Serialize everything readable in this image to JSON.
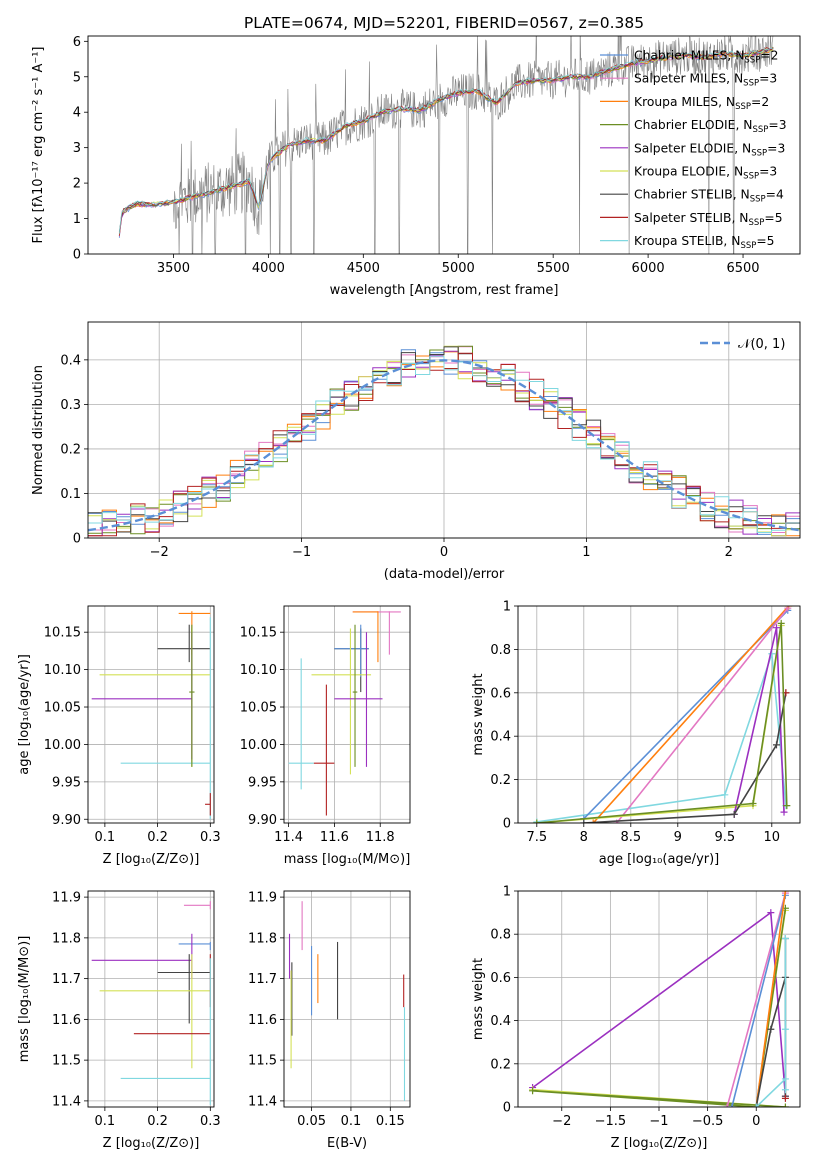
{
  "title": "PLATE=0674, MJD=52201, FIBERID=0567, z=0.385",
  "colors": {
    "chabrier_miles": "#5b8fd6",
    "salpeter_miles": "#e377c2",
    "kroupa_miles": "#ff7f0e",
    "chabrier_elodie": "#6b8e23",
    "salpeter_elodie": "#9b30c0",
    "kroupa_elodie": "#d4e157",
    "chabrier_stelib": "#444444",
    "salpeter_stelib": "#b22222",
    "kroupa_stelib": "#80d8e0",
    "data_grey": "#808080",
    "normal_curve": "#5b8fd6",
    "grid": "#b0b0b0"
  },
  "chart_data": [
    {
      "id": "spectrum",
      "type": "line",
      "xlabel": "wavelength [Angstrom, rest frame]",
      "ylabel": "Flux [fλ10⁻¹⁷ erg cm⁻² s⁻¹ A⁻¹]",
      "xlim": [
        3050,
        6800
      ],
      "ylim": [
        0,
        6.15
      ],
      "xticks": [
        3500,
        4000,
        4500,
        5000,
        5500,
        6000,
        6500
      ],
      "yticks": [
        0,
        1,
        2,
        3,
        4,
        5,
        6
      ],
      "grid": false,
      "legend_position": "top-right",
      "legend": [
        {
          "label": "Chabrier MILES, N",
          "sub": "SSP",
          "suffix": "=2",
          "color_key": "chabrier_miles"
        },
        {
          "label": "Salpeter MILES, N",
          "sub": "SSP",
          "suffix": "=3",
          "color_key": "salpeter_miles"
        },
        {
          "label": "Kroupa MILES, N",
          "sub": "SSP",
          "suffix": "=2",
          "color_key": "kroupa_miles"
        },
        {
          "label": "Chabrier ELODIE, N",
          "sub": "SSP",
          "suffix": "=3",
          "color_key": "chabrier_elodie"
        },
        {
          "label": "Salpeter ELODIE, N",
          "sub": "SSP",
          "suffix": "=3",
          "color_key": "salpeter_elodie"
        },
        {
          "label": "Kroupa ELODIE, N",
          "sub": "SSP",
          "suffix": "=3",
          "color_key": "kroupa_elodie"
        },
        {
          "label": "Chabrier STELIB, N",
          "sub": "SSP",
          "suffix": "=4",
          "color_key": "chabrier_stelib"
        },
        {
          "label": "Salpeter STELIB, N",
          "sub": "SSP",
          "suffix": "=5",
          "color_key": "salpeter_stelib"
        },
        {
          "label": "Kroupa STELIB, N",
          "sub": "SSP",
          "suffix": "=5",
          "color_key": "kroupa_stelib"
        }
      ],
      "continuum": [
        [
          3215,
          0.55
        ],
        [
          3230,
          1.2
        ],
        [
          3300,
          1.4
        ],
        [
          3400,
          1.4
        ],
        [
          3500,
          1.45
        ],
        [
          3600,
          1.6
        ],
        [
          3700,
          1.75
        ],
        [
          3800,
          1.9
        ],
        [
          3900,
          2.05
        ],
        [
          3950,
          1.3
        ],
        [
          4000,
          2.6
        ],
        [
          4100,
          3.05
        ],
        [
          4200,
          3.2
        ],
        [
          4300,
          3.2
        ],
        [
          4400,
          3.6
        ],
        [
          4500,
          3.75
        ],
        [
          4600,
          4.0
        ],
        [
          4700,
          4.1
        ],
        [
          4800,
          4.05
        ],
        [
          4900,
          4.35
        ],
        [
          5000,
          4.55
        ],
        [
          5100,
          4.6
        ],
        [
          5200,
          4.25
        ],
        [
          5300,
          4.8
        ],
        [
          5400,
          4.9
        ],
        [
          5500,
          4.9
        ],
        [
          5600,
          5.0
        ],
        [
          5700,
          5.0
        ],
        [
          5800,
          5.2
        ],
        [
          5900,
          5.35
        ],
        [
          6000,
          5.45
        ],
        [
          6100,
          5.55
        ],
        [
          6200,
          5.6
        ],
        [
          6300,
          5.55
        ],
        [
          6400,
          5.65
        ],
        [
          6500,
          5.6
        ],
        [
          6600,
          5.7
        ],
        [
          6660,
          5.8
        ]
      ],
      "dropouts": [
        3530,
        3600,
        3650,
        3720,
        3880,
        4010,
        4060,
        4120,
        4240,
        4560,
        4690,
        4900,
        5050,
        5180,
        5640,
        5900,
        6320,
        6450
      ]
    },
    {
      "id": "residual_hist",
      "type": "bar",
      "xlabel": "(data-model)/error",
      "ylabel": "Normed distribution",
      "xlim": [
        -2.5,
        2.5
      ],
      "ylim": [
        0,
        0.485
      ],
      "xticks": [
        -2,
        -1,
        0,
        1,
        2
      ],
      "yticks": [
        0.0,
        0.1,
        0.2,
        0.3,
        0.4
      ],
      "grid": true,
      "legend_position": "top-right",
      "legend": [
        {
          "label": "𝒩(0, 1)",
          "style": "dashed",
          "color_key": "normal_curve"
        }
      ],
      "bin_width": 0.1
    },
    {
      "id": "age_vs_Z",
      "type": "scatter",
      "xlabel": "Z [log₁₀(Z/Z⊙)]",
      "ylabel": "age  [log₁₀(age/yr)]",
      "xlim": [
        0.068,
        0.307
      ],
      "ylim": [
        9.895,
        10.185
      ],
      "xticks": [
        0.1,
        0.2,
        0.3
      ],
      "yticks": [
        9.9,
        9.95,
        10.0,
        10.05,
        10.1,
        10.15
      ],
      "yticklabels": [
        "9.90",
        "9.95",
        "10.00",
        "10.05",
        "10.10",
        "10.15"
      ],
      "grid": true,
      "points": [
        {
          "x": 0.265,
          "y": 10.175,
          "xerr": [
            0.24,
            0.3
          ],
          "yerr": [
            10.12,
            10.178
          ],
          "color_key": "kroupa_miles"
        },
        {
          "x": 0.26,
          "y": 10.128,
          "xerr": [
            0.2,
            0.3
          ],
          "yerr": [
            10.11,
            10.16
          ],
          "color_key": "chabrier_stelib"
        },
        {
          "x": 0.265,
          "y": 10.093,
          "xerr": [
            0.09,
            0.3
          ],
          "yerr": [
            9.97,
            10.155
          ],
          "color_key": "kroupa_elodie"
        },
        {
          "x": 0.265,
          "y": 10.061,
          "xerr": [
            0.075,
            0.265
          ],
          "yerr": [
            9.98,
            10.15
          ],
          "color_key": "salpeter_elodie"
        },
        {
          "x": 0.3,
          "y": 9.975,
          "xerr": [
            0.13,
            0.3
          ],
          "yerr": [
            9.9,
            10.17
          ],
          "color_key": "kroupa_stelib"
        },
        {
          "x": 0.3,
          "y": 9.92,
          "xerr": [
            0.29,
            0.3
          ],
          "yerr": [
            9.905,
            9.935
          ],
          "color_key": "salpeter_stelib"
        },
        {
          "x": 0.265,
          "y": 10.07,
          "xerr": [
            0.26,
            0.27
          ],
          "yerr": [
            9.97,
            10.16
          ],
          "color_key": "chabrier_elodie"
        }
      ]
    },
    {
      "id": "age_vs_mass",
      "type": "scatter",
      "xlabel": "mass [log₁₀(M/M⊙)]",
      "ylabel": "",
      "xlim": [
        11.38,
        11.93
      ],
      "ylim": [
        9.895,
        10.185
      ],
      "xticks": [
        11.4,
        11.6,
        11.8
      ],
      "yticks": [
        9.9,
        9.95,
        10.0,
        10.05,
        10.1,
        10.15
      ],
      "yticklabels": [
        "9.90",
        "9.95",
        "10.00",
        "10.05",
        "10.10",
        "10.15"
      ],
      "grid": true,
      "points": [
        {
          "x": 11.84,
          "y": 10.177,
          "xerr": [
            11.68,
            11.89
          ],
          "yerr": [
            10.12,
            10.178
          ],
          "color_key": "salpeter_miles"
        },
        {
          "x": 11.79,
          "y": 10.177,
          "xerr": [
            11.68,
            11.79
          ],
          "yerr": [
            10.11,
            10.178
          ],
          "color_key": "kroupa_miles"
        },
        {
          "x": 11.715,
          "y": 10.128,
          "xerr": [
            11.6,
            11.75
          ],
          "yerr": [
            10.07,
            10.155
          ],
          "color_key": "chabrier_stelib"
        },
        {
          "x": 11.715,
          "y": 10.128,
          "xerr": [
            11.6,
            11.75
          ],
          "yerr": [
            10.09,
            10.16
          ],
          "color_key": "chabrier_miles"
        },
        {
          "x": 11.67,
          "y": 10.093,
          "xerr": [
            11.5,
            11.76
          ],
          "yerr": [
            9.96,
            10.155
          ],
          "color_key": "kroupa_elodie"
        },
        {
          "x": 11.74,
          "y": 10.061,
          "xerr": [
            11.6,
            11.81
          ],
          "yerr": [
            9.97,
            10.15
          ],
          "color_key": "salpeter_elodie"
        },
        {
          "x": 11.565,
          "y": 9.975,
          "xerr": [
            11.51,
            11.6
          ],
          "yerr": [
            9.905,
            10.08
          ],
          "color_key": "salpeter_stelib"
        },
        {
          "x": 11.455,
          "y": 9.975,
          "xerr": [
            11.4,
            11.51
          ],
          "yerr": [
            9.94,
            10.115
          ],
          "color_key": "kroupa_stelib"
        },
        {
          "x": 11.69,
          "y": 10.07,
          "xerr": [
            11.68,
            11.7
          ],
          "yerr": [
            9.97,
            10.16
          ],
          "color_key": "chabrier_elodie"
        }
      ]
    },
    {
      "id": "massweight_vs_age",
      "type": "line",
      "xlabel": "age  [log₁₀(age/yr)]",
      "ylabel": "mass weight",
      "xlim": [
        7.3,
        10.3
      ],
      "ylim": [
        0,
        1.0
      ],
      "xticks": [
        7.5,
        8.0,
        8.5,
        9.0,
        9.5,
        10.0
      ],
      "yticks": [
        0.0,
        0.2,
        0.4,
        0.6,
        0.8,
        1.0
      ],
      "grid": true,
      "series": [
        {
          "color_key": "kroupa_stelib",
          "x": [
            7.5,
            9.5,
            10.0,
            10.15
          ],
          "y": [
            0.005,
            0.13,
            0.78,
            0.08
          ]
        },
        {
          "color_key": "chabrier_miles",
          "x": [
            8.0,
            10.17
          ],
          "y": [
            0.02,
            0.98
          ]
        },
        {
          "color_key": "kroupa_miles",
          "x": [
            8.1,
            10.18
          ],
          "y": [
            0.0,
            1.0
          ]
        },
        {
          "color_key": "salpeter_miles",
          "x": [
            8.35,
            10.17
          ],
          "y": [
            0.0,
            0.99
          ]
        },
        {
          "color_key": "kroupa_elodie",
          "x": [
            7.5,
            9.8,
            10.1
          ],
          "y": [
            0.0,
            0.08,
            0.91
          ]
        },
        {
          "color_key": "salpeter_elodie",
          "x": [
            9.6,
            10.05,
            10.13
          ],
          "y": [
            0.04,
            0.9,
            0.05
          ]
        },
        {
          "color_key": "chabrier_stelib",
          "x": [
            8.0,
            9.6,
            10.05,
            10.15
          ],
          "y": [
            0.0,
            0.04,
            0.36,
            0.6
          ]
        },
        {
          "color_key": "salpeter_stelib",
          "x": [
            10.15
          ],
          "y": [
            0.6
          ]
        },
        {
          "color_key": "chabrier_elodie",
          "x": [
            7.5,
            9.8,
            10.1,
            10.16
          ],
          "y": [
            0.0,
            0.09,
            0.92,
            0.08
          ]
        }
      ]
    },
    {
      "id": "mass_vs_Z",
      "type": "scatter",
      "xlabel": "Z [log₁₀(Z/Z⊙)]",
      "ylabel": "mass [log₁₀(M/M⊙)]",
      "xlim": [
        0.068,
        0.307
      ],
      "ylim": [
        11.385,
        11.915
      ],
      "xticks": [
        0.1,
        0.2,
        0.3
      ],
      "yticks": [
        11.4,
        11.5,
        11.6,
        11.7,
        11.8,
        11.9
      ],
      "grid": true,
      "points": [
        {
          "x": 0.3,
          "y": 11.88,
          "xerr": [
            0.25,
            0.3
          ],
          "yerr": [
            11.87,
            11.89
          ],
          "color_key": "salpeter_miles"
        },
        {
          "x": 0.3,
          "y": 11.785,
          "xerr": [
            0.24,
            0.3
          ],
          "yerr": [
            11.77,
            11.79
          ],
          "color_key": "chabrier_miles"
        },
        {
          "x": 0.265,
          "y": 11.745,
          "xerr": [
            0.075,
            0.265
          ],
          "yerr": [
            11.7,
            11.81
          ],
          "color_key": "salpeter_elodie"
        },
        {
          "x": 0.26,
          "y": 11.715,
          "xerr": [
            0.2,
            0.3
          ],
          "yerr": [
            11.59,
            11.76
          ],
          "color_key": "chabrier_stelib"
        },
        {
          "x": 0.265,
          "y": 11.67,
          "xerr": [
            0.09,
            0.3
          ],
          "yerr": [
            11.48,
            11.76
          ],
          "color_key": "kroupa_elodie"
        },
        {
          "x": 0.3,
          "y": 11.565,
          "xerr": [
            0.155,
            0.3
          ],
          "yerr": [
            11.63,
            11.76
          ],
          "color_key": "salpeter_stelib"
        },
        {
          "x": 0.3,
          "y": 11.455,
          "xerr": [
            0.13,
            0.3
          ],
          "yerr": [
            11.39,
            11.75
          ],
          "color_key": "kroupa_stelib"
        }
      ]
    },
    {
      "id": "mass_vs_ebv",
      "type": "scatter",
      "xlabel": "E(B-V)",
      "ylabel": "",
      "xlim": [
        0.015,
        0.175
      ],
      "ylim": [
        11.385,
        11.915
      ],
      "xticks": [
        0.05,
        0.1,
        0.15
      ],
      "yticks": [
        11.4,
        11.5,
        11.6,
        11.7,
        11.8,
        11.9
      ],
      "grid": true,
      "points": [
        {
          "x": 0.038,
          "y": 11.85,
          "yerr": [
            11.77,
            11.89
          ],
          "color_key": "salpeter_miles"
        },
        {
          "x": 0.022,
          "y": 11.76,
          "yerr": [
            11.7,
            11.81
          ],
          "color_key": "salpeter_elodie"
        },
        {
          "x": 0.025,
          "y": 11.7,
          "yerr": [
            11.56,
            11.74
          ],
          "color_key": "chabrier_stelib"
        },
        {
          "x": 0.024,
          "y": 11.65,
          "yerr": [
            11.48,
            11.72
          ],
          "color_key": "kroupa_elodie"
        },
        {
          "x": 0.05,
          "y": 11.7,
          "yerr": [
            11.61,
            11.78
          ],
          "color_key": "chabrier_miles"
        },
        {
          "x": 0.058,
          "y": 11.7,
          "yerr": [
            11.64,
            11.76
          ],
          "color_key": "kroupa_miles"
        },
        {
          "x": 0.083,
          "y": 11.7,
          "yerr": [
            11.6,
            11.79
          ],
          "color_key": "chabrier_stelib"
        },
        {
          "x": 0.167,
          "y": 11.67,
          "yerr": [
            11.63,
            11.71
          ],
          "color_key": "salpeter_stelib"
        },
        {
          "x": 0.168,
          "y": 11.55,
          "yerr": [
            11.4,
            11.63
          ],
          "color_key": "kroupa_stelib"
        }
      ]
    },
    {
      "id": "massweight_vs_Z",
      "type": "line",
      "xlabel": "Z [log₁₀(Z/Z⊙)]",
      "ylabel": "mass weight",
      "xlim": [
        -2.45,
        0.45
      ],
      "ylim": [
        0,
        1.0
      ],
      "xticks": [
        -2.0,
        -1.5,
        -1.0,
        -0.5,
        0.0
      ],
      "yticks": [
        0.0,
        0.2,
        0.4,
        0.6,
        0.8,
        1.0
      ],
      "grid": true,
      "series": [
        {
          "color_key": "salpeter_elodie",
          "x": [
            -2.3,
            0.15,
            0.3
          ],
          "y": [
            0.09,
            0.9,
            0.05
          ]
        },
        {
          "color_key": "kroupa_elodie",
          "x": [
            0.3,
            -2.3,
            0.0,
            0.3
          ],
          "y": [
            0.0,
            0.08,
            0.0,
            0.91
          ]
        },
        {
          "color_key": "chabrier_elodie",
          "x": [
            0.3,
            -2.3,
            0.0,
            0.3
          ],
          "y": [
            0.0,
            0.075,
            0.0,
            0.92
          ]
        },
        {
          "color_key": "salpeter_miles",
          "x": [
            -0.3,
            0.3
          ],
          "y": [
            0.0,
            0.99
          ]
        },
        {
          "color_key": "chabrier_miles",
          "x": [
            -0.25,
            0.3
          ],
          "y": [
            0.0,
            0.98
          ]
        },
        {
          "color_key": "kroupa_miles",
          "x": [
            0.0,
            0.3
          ],
          "y": [
            0.0,
            1.0
          ]
        },
        {
          "color_key": "chabrier_stelib",
          "x": [
            0.0,
            0.15,
            0.3,
            0.3,
            0.3
          ],
          "y": [
            0.0,
            0.36,
            0.6,
            0.78,
            0.05
          ]
        },
        {
          "color_key": "salpeter_stelib",
          "x": [
            0.3
          ],
          "y": [
            0.04
          ]
        },
        {
          "color_key": "kroupa_stelib",
          "x": [
            0.0,
            0.3,
            0.3,
            0.3,
            0.3
          ],
          "y": [
            0.0,
            0.13,
            0.36,
            0.78,
            0.08
          ]
        }
      ]
    }
  ]
}
